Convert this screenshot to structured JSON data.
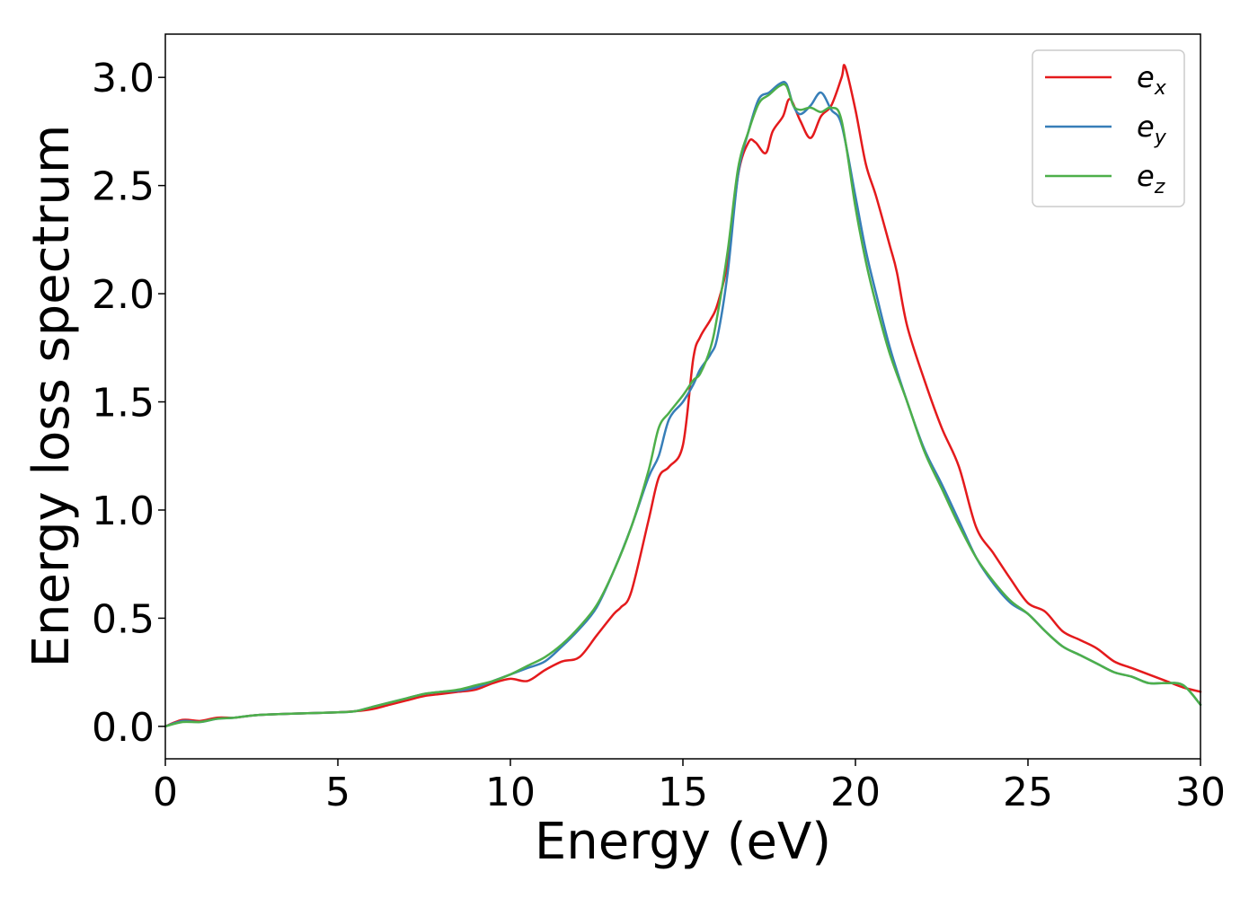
{
  "chart_data": {
    "type": "line",
    "title": "",
    "xlabel": "Energy (eV)",
    "ylabel": "Energy loss spectrum",
    "xlim": [
      0,
      30
    ],
    "ylim": [
      -0.15,
      3.2
    ],
    "xticks": [
      0,
      5,
      10,
      15,
      20,
      25,
      30
    ],
    "yticks": [
      0.0,
      0.5,
      1.0,
      1.5,
      2.0,
      2.5,
      3.0
    ],
    "xtick_labels": [
      "0",
      "5",
      "10",
      "15",
      "20",
      "25",
      "30"
    ],
    "ytick_labels": [
      "0.0",
      "0.5",
      "1.0",
      "1.5",
      "2.0",
      "2.5",
      "3.0"
    ],
    "grid": false,
    "legend_position": "top-right",
    "series": [
      {
        "name": "x",
        "color": "#e41a1c",
        "x": [
          0,
          0.5,
          1,
          1.5,
          2,
          2.5,
          3,
          4,
          5,
          5.5,
          6,
          6.5,
          7,
          7.5,
          8,
          8.5,
          9,
          9.5,
          10,
          10.5,
          11,
          11.5,
          12,
          12.5,
          13,
          13.2,
          13.5,
          14,
          14.3,
          14.6,
          15,
          15.3,
          15.5,
          15.8,
          16,
          16.3,
          16.6,
          16.9,
          17.1,
          17.4,
          17.6,
          17.9,
          18.1,
          18.4,
          18.7,
          19,
          19.3,
          19.6,
          19.7,
          20,
          20.3,
          20.6,
          21,
          21.2,
          21.5,
          22,
          22.5,
          23,
          23.5,
          24,
          24.5,
          25,
          25.5,
          26,
          26.5,
          27,
          27.5,
          28,
          28.5,
          29,
          29.5,
          30
        ],
        "y": [
          0,
          0.03,
          0.025,
          0.04,
          0.04,
          0.05,
          0.055,
          0.06,
          0.065,
          0.07,
          0.08,
          0.1,
          0.12,
          0.14,
          0.15,
          0.16,
          0.17,
          0.2,
          0.22,
          0.21,
          0.26,
          0.3,
          0.32,
          0.42,
          0.52,
          0.55,
          0.62,
          0.95,
          1.15,
          1.2,
          1.3,
          1.7,
          1.8,
          1.88,
          1.95,
          2.15,
          2.55,
          2.7,
          2.7,
          2.65,
          2.75,
          2.82,
          2.9,
          2.8,
          2.72,
          2.82,
          2.87,
          3.0,
          3.05,
          2.85,
          2.6,
          2.45,
          2.22,
          2.1,
          1.85,
          1.6,
          1.38,
          1.2,
          0.92,
          0.8,
          0.68,
          0.57,
          0.53,
          0.44,
          0.4,
          0.36,
          0.3,
          0.27,
          0.24,
          0.21,
          0.18,
          0.16
        ]
      },
      {
        "name": "y",
        "color": "#377eb8",
        "x": [
          0,
          0.5,
          1,
          1.5,
          2,
          2.5,
          3,
          4,
          5,
          5.5,
          6,
          6.5,
          7,
          7.5,
          8,
          8.5,
          9,
          9.5,
          10,
          10.5,
          11,
          11.5,
          12,
          12.5,
          13,
          13.5,
          14,
          14.3,
          14.6,
          15,
          15.3,
          15.5,
          15.8,
          16,
          16.3,
          16.6,
          16.9,
          17.2,
          17.5,
          17.8,
          18,
          18.2,
          18.4,
          18.7,
          19,
          19.3,
          19.6,
          20,
          20.3,
          20.6,
          21,
          21.5,
          22,
          22.5,
          23,
          23.5,
          24,
          24.5,
          25,
          25.5,
          26,
          26.5,
          27,
          27.5,
          28,
          28.5,
          29,
          29.5,
          30
        ],
        "y": [
          0,
          0.025,
          0.02,
          0.035,
          0.04,
          0.05,
          0.055,
          0.06,
          0.065,
          0.07,
          0.09,
          0.11,
          0.13,
          0.15,
          0.16,
          0.165,
          0.18,
          0.21,
          0.24,
          0.27,
          0.3,
          0.37,
          0.45,
          0.55,
          0.72,
          0.92,
          1.15,
          1.25,
          1.42,
          1.5,
          1.58,
          1.65,
          1.72,
          1.8,
          2.1,
          2.55,
          2.75,
          2.9,
          2.93,
          2.97,
          2.97,
          2.87,
          2.83,
          2.87,
          2.93,
          2.85,
          2.78,
          2.45,
          2.2,
          2.0,
          1.75,
          1.5,
          1.28,
          1.12,
          0.95,
          0.78,
          0.66,
          0.57,
          0.52,
          0.44,
          0.37,
          0.33,
          0.29,
          0.25,
          0.23,
          0.2,
          0.2,
          0.19,
          0.1
        ]
      },
      {
        "name": "z",
        "color": "#4daf4a",
        "x": [
          0,
          0.5,
          1,
          1.5,
          2,
          2.5,
          3,
          4,
          5,
          5.5,
          6,
          6.5,
          7,
          7.5,
          8,
          8.5,
          9,
          9.5,
          10,
          10.5,
          11,
          11.5,
          12,
          12.5,
          13,
          13.5,
          14,
          14.3,
          14.6,
          15,
          15.3,
          15.5,
          15.8,
          16,
          16.3,
          16.6,
          16.9,
          17.2,
          17.5,
          17.8,
          18,
          18.2,
          18.4,
          18.7,
          19,
          19.3,
          19.6,
          20,
          20.3,
          20.6,
          21,
          21.5,
          22,
          22.5,
          23,
          23.5,
          24,
          24.5,
          25,
          25.5,
          26,
          26.5,
          27,
          27.5,
          28,
          28.5,
          29,
          29.5,
          30
        ],
        "y": [
          0,
          0.02,
          0.02,
          0.035,
          0.04,
          0.05,
          0.055,
          0.06,
          0.065,
          0.07,
          0.09,
          0.11,
          0.13,
          0.15,
          0.16,
          0.17,
          0.19,
          0.21,
          0.24,
          0.28,
          0.32,
          0.38,
          0.46,
          0.56,
          0.72,
          0.92,
          1.18,
          1.38,
          1.45,
          1.53,
          1.6,
          1.63,
          1.75,
          1.9,
          2.2,
          2.58,
          2.75,
          2.88,
          2.92,
          2.96,
          2.96,
          2.87,
          2.85,
          2.86,
          2.84,
          2.86,
          2.8,
          2.4,
          2.15,
          1.95,
          1.72,
          1.5,
          1.27,
          1.1,
          0.93,
          0.78,
          0.67,
          0.58,
          0.52,
          0.44,
          0.37,
          0.33,
          0.29,
          0.25,
          0.23,
          0.2,
          0.2,
          0.19,
          0.1
        ]
      }
    ]
  }
}
